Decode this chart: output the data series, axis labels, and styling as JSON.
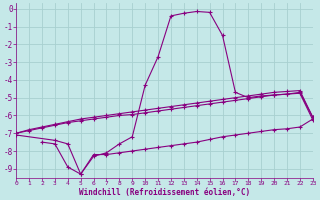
{
  "background_color": "#c5e8e8",
  "grid_color": "#a8d0d0",
  "line_color": "#880080",
  "xlabel": "Windchill (Refroidissement éolien,°C)",
  "xlim": [
    0,
    23
  ],
  "ylim": [
    -9.5,
    0.3
  ],
  "yticks": [
    0,
    -1,
    -2,
    -3,
    -4,
    -5,
    -6,
    -7,
    -8,
    -9
  ],
  "xticks": [
    0,
    1,
    2,
    3,
    4,
    5,
    6,
    7,
    8,
    9,
    10,
    11,
    12,
    13,
    14,
    15,
    16,
    17,
    18,
    19,
    20,
    21,
    22,
    23
  ],
  "curve_big_x": [
    0,
    3,
    4,
    5,
    6,
    7,
    8,
    9,
    10,
    11,
    12,
    13,
    14,
    15,
    16,
    17,
    18,
    19,
    20,
    21,
    22,
    23
  ],
  "curve_big_y": [
    -7.1,
    -7.4,
    -7.6,
    -9.3,
    -8.3,
    -8.1,
    -7.6,
    -7.2,
    -4.3,
    -2.7,
    -0.4,
    -0.25,
    -0.15,
    -0.2,
    -1.5,
    -4.7,
    -5.0,
    -4.9,
    -4.85,
    -4.8,
    -4.7,
    -6.1
  ],
  "curve_lo_x": [
    2,
    3,
    4,
    5,
    6,
    7,
    8,
    9,
    10,
    11,
    12,
    13,
    14,
    15,
    16,
    17,
    18,
    19,
    20,
    21,
    22,
    23
  ],
  "curve_lo_y": [
    -7.5,
    -7.6,
    -8.9,
    -9.3,
    -8.2,
    -8.2,
    -8.1,
    -8.0,
    -7.9,
    -7.8,
    -7.7,
    -7.6,
    -7.5,
    -7.35,
    -7.2,
    -7.1,
    -7.0,
    -6.9,
    -6.8,
    -6.75,
    -6.65,
    -6.2
  ],
  "curve_mid_x": [
    0,
    1,
    2,
    3,
    4,
    5,
    6,
    7,
    8,
    9,
    10,
    11,
    12,
    13,
    14,
    15,
    16,
    17,
    18,
    19,
    20,
    21,
    22,
    23
  ],
  "curve_mid_y": [
    -7.0,
    -6.85,
    -6.7,
    -6.55,
    -6.4,
    -6.3,
    -6.2,
    -6.1,
    -6.0,
    -5.95,
    -5.85,
    -5.75,
    -5.65,
    -5.55,
    -5.45,
    -5.35,
    -5.25,
    -5.15,
    -5.05,
    -4.95,
    -4.85,
    -4.8,
    -4.75,
    -6.25
  ],
  "curve_up_x": [
    0,
    1,
    2,
    3,
    4,
    5,
    6,
    7,
    8,
    9,
    10,
    11,
    12,
    13,
    14,
    15,
    16,
    17,
    18,
    19,
    20,
    21,
    22,
    23
  ],
  "curve_up_y": [
    -7.0,
    -6.8,
    -6.65,
    -6.5,
    -6.35,
    -6.2,
    -6.1,
    -6.0,
    -5.9,
    -5.8,
    -5.7,
    -5.6,
    -5.5,
    -5.4,
    -5.3,
    -5.2,
    -5.1,
    -5.0,
    -4.9,
    -4.8,
    -4.7,
    -4.65,
    -4.6,
    -6.1
  ]
}
